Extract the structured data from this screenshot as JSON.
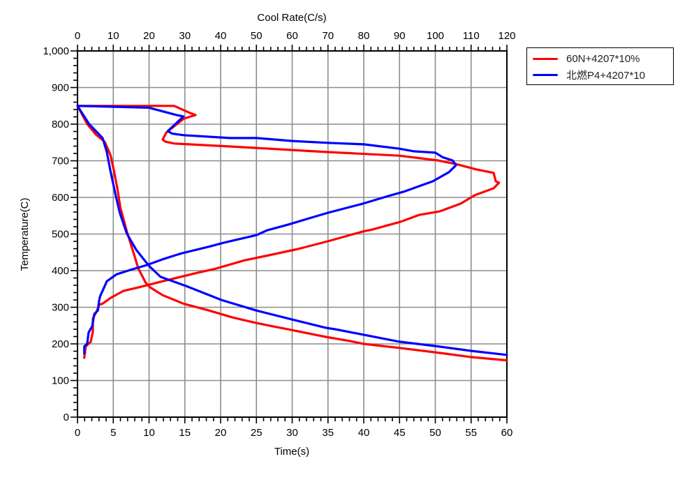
{
  "chart_data": {
    "type": "line",
    "title": "",
    "xlabel": "Time(s)",
    "ylabel": "Temperature(C)",
    "x2label": "Cool Rate(C/s)",
    "xlim": [
      0,
      60
    ],
    "x2lim": [
      0,
      120
    ],
    "ylim": [
      0,
      1000
    ],
    "x_ticks": [
      "0",
      "5",
      "10",
      "15",
      "20",
      "25",
      "30",
      "35",
      "40",
      "45",
      "50",
      "55",
      "60"
    ],
    "x2_ticks": [
      "0",
      "10",
      "20",
      "30",
      "40",
      "50",
      "60",
      "70",
      "80",
      "90",
      "100",
      "110",
      "120"
    ],
    "y_ticks": [
      "0",
      "100",
      "200",
      "300",
      "400",
      "500",
      "600",
      "700",
      "800",
      "900",
      "1,000"
    ],
    "grid": true,
    "legend_position": "right-top outside",
    "series": [
      {
        "name": "60N+4207*10%",
        "color": "#ff0000",
        "temp_vs_time": [
          [
            0,
            850
          ],
          [
            1.37,
            800
          ],
          [
            2.6,
            771
          ],
          [
            3.8,
            752
          ],
          [
            4.6,
            716
          ],
          [
            5.1,
            672
          ],
          [
            5.6,
            621
          ],
          [
            6.0,
            571
          ],
          [
            6.9,
            507
          ],
          [
            7.7,
            457
          ],
          [
            8.5,
            406
          ],
          [
            9.5,
            368
          ],
          [
            10.1,
            355
          ],
          [
            11.9,
            333
          ],
          [
            14.8,
            310
          ],
          [
            18.4,
            291
          ],
          [
            21.7,
            272
          ],
          [
            25,
            257
          ],
          [
            29.9,
            238
          ],
          [
            34.7,
            219
          ],
          [
            38,
            208
          ],
          [
            40,
            200
          ],
          [
            45,
            189
          ],
          [
            50,
            177
          ],
          [
            55,
            164
          ],
          [
            60,
            155
          ]
        ],
        "temp_vs_cool_rate": [
          [
            1.9,
            162
          ],
          [
            2.3,
            193
          ],
          [
            3.7,
            206
          ],
          [
            4.3,
            234
          ],
          [
            4.3,
            269
          ],
          [
            5.3,
            288
          ],
          [
            6.1,
            307
          ],
          [
            7,
            310
          ],
          [
            9.3,
            326
          ],
          [
            12.9,
            345
          ],
          [
            17.4,
            355
          ],
          [
            23.8,
            371
          ],
          [
            33,
            393
          ],
          [
            38.8,
            406
          ],
          [
            46.6,
            428
          ],
          [
            52.5,
            440
          ],
          [
            61.6,
            459
          ],
          [
            70.6,
            482
          ],
          [
            79.8,
            507
          ],
          [
            82.3,
            512
          ],
          [
            90.1,
            533
          ],
          [
            95.4,
            552
          ],
          [
            101.3,
            562
          ],
          [
            107.1,
            583
          ],
          [
            111,
            606
          ],
          [
            116.3,
            625
          ],
          [
            117.8,
            640
          ],
          [
            116.9,
            644
          ],
          [
            116.3,
            667
          ],
          [
            111.6,
            676
          ],
          [
            105.8,
            691
          ],
          [
            100.7,
            701
          ],
          [
            90,
            714
          ],
          [
            69.5,
            724
          ],
          [
            50,
            735
          ],
          [
            42.7,
            739
          ],
          [
            27.1,
            747
          ],
          [
            24.6,
            752
          ],
          [
            23.8,
            758
          ],
          [
            24.8,
            777
          ],
          [
            29.7,
            815
          ],
          [
            33,
            825
          ],
          [
            31.6,
            830
          ],
          [
            27,
            850
          ],
          [
            0,
            850
          ]
        ]
      },
      {
        "name": "北燃P4+4207*10",
        "color": "#0000ff",
        "temp_vs_time": [
          [
            0,
            850
          ],
          [
            1.6,
            801
          ],
          [
            3.5,
            762
          ],
          [
            4.1,
            724
          ],
          [
            4.6,
            672
          ],
          [
            5.3,
            609
          ],
          [
            5.9,
            558
          ],
          [
            6.9,
            501
          ],
          [
            8.2,
            457
          ],
          [
            9.5,
            425
          ],
          [
            10.1,
            411
          ],
          [
            11.6,
            383
          ],
          [
            15.2,
            358
          ],
          [
            20.1,
            320
          ],
          [
            25,
            291
          ],
          [
            29.9,
            267
          ],
          [
            34.7,
            244
          ],
          [
            36,
            240
          ],
          [
            40,
            225
          ],
          [
            45,
            206
          ],
          [
            50,
            194
          ],
          [
            55,
            181
          ],
          [
            60,
            170
          ]
        ],
        "temp_vs_cool_rate": [
          [
            1.9,
            174
          ],
          [
            1.9,
            193
          ],
          [
            2.7,
            200
          ],
          [
            3.1,
            231
          ],
          [
            4.1,
            248
          ],
          [
            4.7,
            282
          ],
          [
            5.7,
            291
          ],
          [
            6,
            316
          ],
          [
            6.3,
            330
          ],
          [
            7.2,
            349
          ],
          [
            8.2,
            371
          ],
          [
            10.9,
            390
          ],
          [
            14.8,
            402
          ],
          [
            19.3,
            415
          ],
          [
            23.8,
            431
          ],
          [
            29,
            447
          ],
          [
            36.9,
            466
          ],
          [
            40.8,
            476
          ],
          [
            50,
            497
          ],
          [
            52.9,
            510
          ],
          [
            59,
            526
          ],
          [
            64.8,
            543
          ],
          [
            70,
            558
          ],
          [
            79.8,
            583
          ],
          [
            87.6,
            606
          ],
          [
            91,
            615
          ],
          [
            99.3,
            644
          ],
          [
            103.8,
            669
          ],
          [
            105.8,
            688
          ],
          [
            104.8,
            701
          ],
          [
            102,
            710
          ],
          [
            100,
            722
          ],
          [
            94,
            726
          ],
          [
            90,
            733
          ],
          [
            80,
            745
          ],
          [
            70,
            749
          ],
          [
            60,
            754
          ],
          [
            50,
            762
          ],
          [
            42.7,
            762
          ],
          [
            29.7,
            770
          ],
          [
            26.5,
            774
          ],
          [
            25.2,
            781
          ],
          [
            29.6,
            821
          ],
          [
            27.7,
            825
          ],
          [
            20,
            845
          ],
          [
            0,
            850
          ]
        ]
      }
    ]
  }
}
